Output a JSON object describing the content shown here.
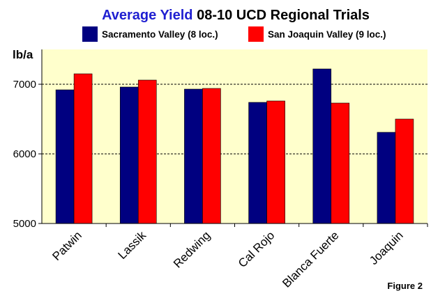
{
  "chart_data": {
    "type": "bar",
    "title_part1": "Average Yield",
    "title_part2": " 08-10 UCD Regional Trials",
    "ylabel": "lb/a",
    "figure_label": "Figure 2",
    "categories": [
      "Patwin",
      "Lassik",
      "Redwing",
      "Cal Rojo",
      "Blanca Fuerte",
      "Joaquin"
    ],
    "series": [
      {
        "name": "Sacramento Valley (8 loc.)",
        "color": "#000080",
        "values": [
          6920,
          6960,
          6930,
          6740,
          7220,
          6310
        ]
      },
      {
        "name": "San Joaquin Valley (9 loc.)",
        "color": "#ff0000",
        "values": [
          7150,
          7060,
          6940,
          6760,
          6730,
          6500
        ]
      }
    ],
    "ylim": [
      5000,
      7500
    ],
    "yticks": [
      5000,
      6000,
      7000
    ],
    "grid": true,
    "plot_background": "#ffffcc",
    "legend_position": "top"
  }
}
